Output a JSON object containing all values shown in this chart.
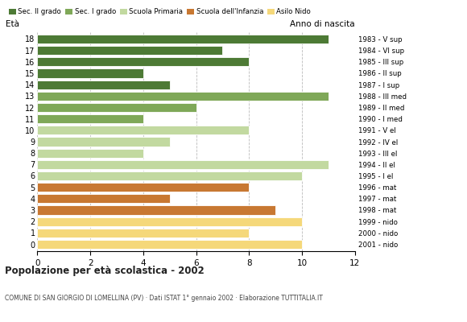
{
  "ages": [
    18,
    17,
    16,
    15,
    14,
    13,
    12,
    11,
    10,
    9,
    8,
    7,
    6,
    5,
    4,
    3,
    2,
    1,
    0
  ],
  "values": [
    11,
    7,
    8,
    4,
    5,
    11,
    6,
    4,
    8,
    5,
    4,
    11,
    10,
    8,
    5,
    9,
    10,
    8,
    10
  ],
  "categories": [
    "Sec. II grado",
    "Sec. I grado",
    "Scuola Primaria",
    "Scuola dell'Infanzia",
    "Asilo Nido"
  ],
  "bar_colors": {
    "Sec. II grado": "#4d7a35",
    "Sec. I grado": "#7fa858",
    "Scuola Primaria": "#c2d9a0",
    "Scuola dell'Infanzia": "#c87832",
    "Asilo Nido": "#f5d87a"
  },
  "age_category": {
    "18": "Sec. II grado",
    "17": "Sec. II grado",
    "16": "Sec. II grado",
    "15": "Sec. II grado",
    "14": "Sec. II grado",
    "13": "Sec. I grado",
    "12": "Sec. I grado",
    "11": "Sec. I grado",
    "10": "Scuola Primaria",
    "9": "Scuola Primaria",
    "8": "Scuola Primaria",
    "7": "Scuola Primaria",
    "6": "Scuola Primaria",
    "5": "Scuola dell'Infanzia",
    "4": "Scuola dell'Infanzia",
    "3": "Scuola dell'Infanzia",
    "2": "Asilo Nido",
    "1": "Asilo Nido",
    "0": "Asilo Nido"
  },
  "right_labels": {
    "18": "1983 - V sup",
    "17": "1984 - VI sup",
    "16": "1985 - III sup",
    "15": "1986 - II sup",
    "14": "1987 - I sup",
    "13": "1988 - III med",
    "12": "1989 - II med",
    "11": "1990 - I med",
    "10": "1991 - V el",
    "9": "1992 - IV el",
    "8": "1993 - III el",
    "7": "1994 - II el",
    "6": "1995 - I el",
    "5": "1996 - mat",
    "4": "1997 - mat",
    "3": "1998 - mat",
    "2": "1999 - nido",
    "1": "2000 - nido",
    "0": "2001 - nido"
  },
  "xlim": [
    0,
    12
  ],
  "xticks": [
    0,
    2,
    4,
    6,
    8,
    10,
    12
  ],
  "title": "Popolazione per età scolastica - 2002",
  "subtitle": "COMUNE DI SAN GIORGIO DI LOMELLINA (PV) · Dati ISTAT 1° gennaio 2002 · Elaborazione TUTTITALIA.IT",
  "ylabel": "Età",
  "right_header": "Anno di nascita",
  "background_color": "#ffffff",
  "grid_color": "#aaaaaa"
}
